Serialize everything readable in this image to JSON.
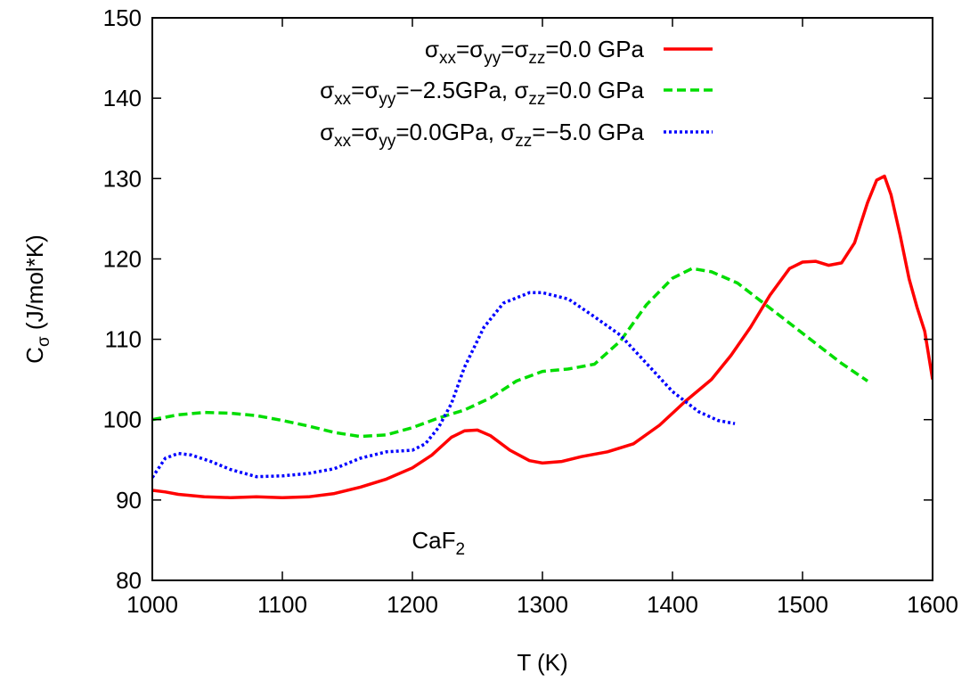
{
  "chart_data": {
    "type": "line",
    "xlabel": "T (K)",
    "ylabel": {
      "main": "C",
      "sub": "σ",
      "rest": " (J/mol*K)"
    },
    "xlim": [
      1000,
      1600
    ],
    "ylim": [
      80,
      150
    ],
    "xticks": [
      1000,
      1100,
      1200,
      1300,
      1400,
      1500,
      1600
    ],
    "yticks": [
      80,
      90,
      100,
      110,
      120,
      130,
      140,
      150
    ],
    "grid": false,
    "legend_position": "top-right",
    "annotation": {
      "main": "CaF",
      "sub": "2",
      "x": 1220,
      "y": 85
    },
    "series": [
      {
        "legend": [
          [
            "σ",
            ""
          ],
          [
            "xx",
            "sub"
          ],
          [
            "=σ",
            ""
          ],
          [
            "yy",
            "sub"
          ],
          [
            "=σ",
            ""
          ],
          [
            "zz",
            "sub"
          ],
          [
            "=0.0 GPa",
            ""
          ]
        ],
        "color": "#ff0000",
        "dash": "solid",
        "points": [
          [
            1000,
            91.2
          ],
          [
            1010,
            91.0
          ],
          [
            1020,
            90.7
          ],
          [
            1040,
            90.4
          ],
          [
            1060,
            90.3
          ],
          [
            1080,
            90.4
          ],
          [
            1100,
            90.3
          ],
          [
            1120,
            90.4
          ],
          [
            1140,
            90.8
          ],
          [
            1160,
            91.6
          ],
          [
            1180,
            92.6
          ],
          [
            1200,
            94.0
          ],
          [
            1215,
            95.6
          ],
          [
            1230,
            97.8
          ],
          [
            1240,
            98.6
          ],
          [
            1250,
            98.7
          ],
          [
            1260,
            98.0
          ],
          [
            1275,
            96.2
          ],
          [
            1290,
            94.9
          ],
          [
            1300,
            94.6
          ],
          [
            1315,
            94.8
          ],
          [
            1330,
            95.4
          ],
          [
            1350,
            96.0
          ],
          [
            1370,
            97.0
          ],
          [
            1390,
            99.3
          ],
          [
            1410,
            102.3
          ],
          [
            1430,
            105.0
          ],
          [
            1445,
            108.0
          ],
          [
            1460,
            111.5
          ],
          [
            1475,
            115.5
          ],
          [
            1490,
            118.8
          ],
          [
            1500,
            119.6
          ],
          [
            1510,
            119.7
          ],
          [
            1520,
            119.2
          ],
          [
            1530,
            119.5
          ],
          [
            1540,
            122.0
          ],
          [
            1550,
            127.0
          ],
          [
            1557,
            129.8
          ],
          [
            1563,
            130.3
          ],
          [
            1568,
            128.0
          ],
          [
            1575,
            123.0
          ],
          [
            1582,
            117.5
          ],
          [
            1588,
            114.0
          ],
          [
            1594,
            111.0
          ],
          [
            1600,
            105.0
          ]
        ]
      },
      {
        "legend": [
          [
            "σ",
            ""
          ],
          [
            "xx",
            "sub"
          ],
          [
            "=σ",
            ""
          ],
          [
            "yy",
            "sub"
          ],
          [
            "=−2.5GPa, σ",
            ""
          ],
          [
            "zz",
            "sub"
          ],
          [
            "=0.0 GPa",
            ""
          ]
        ],
        "color": "#00dd00",
        "dash": "10,5",
        "points": [
          [
            1000,
            100.0
          ],
          [
            1020,
            100.6
          ],
          [
            1040,
            100.9
          ],
          [
            1060,
            100.8
          ],
          [
            1080,
            100.5
          ],
          [
            1100,
            99.9
          ],
          [
            1120,
            99.2
          ],
          [
            1140,
            98.4
          ],
          [
            1160,
            97.9
          ],
          [
            1180,
            98.1
          ],
          [
            1200,
            99.0
          ],
          [
            1220,
            100.2
          ],
          [
            1240,
            101.2
          ],
          [
            1260,
            102.7
          ],
          [
            1280,
            104.8
          ],
          [
            1300,
            106.0
          ],
          [
            1320,
            106.3
          ],
          [
            1340,
            106.9
          ],
          [
            1360,
            109.8
          ],
          [
            1380,
            114.3
          ],
          [
            1400,
            117.6
          ],
          [
            1415,
            118.8
          ],
          [
            1430,
            118.4
          ],
          [
            1450,
            117.0
          ],
          [
            1470,
            114.5
          ],
          [
            1490,
            112.0
          ],
          [
            1510,
            109.5
          ],
          [
            1530,
            107.0
          ],
          [
            1550,
            104.8
          ]
        ]
      },
      {
        "legend": [
          [
            "σ",
            ""
          ],
          [
            "xx",
            "sub"
          ],
          [
            "=σ",
            ""
          ],
          [
            "yy",
            "sub"
          ],
          [
            "=0.0GPa, σ",
            ""
          ],
          [
            "zz",
            "sub"
          ],
          [
            "=−5.0 GPa",
            ""
          ]
        ],
        "color": "#0000ff",
        "dash": "3,3",
        "points": [
          [
            1000,
            92.8
          ],
          [
            1010,
            95.2
          ],
          [
            1020,
            95.8
          ],
          [
            1030,
            95.6
          ],
          [
            1045,
            94.8
          ],
          [
            1060,
            93.8
          ],
          [
            1080,
            92.9
          ],
          [
            1100,
            93.0
          ],
          [
            1120,
            93.3
          ],
          [
            1140,
            93.9
          ],
          [
            1160,
            95.2
          ],
          [
            1180,
            96.0
          ],
          [
            1200,
            96.2
          ],
          [
            1210,
            97.0
          ],
          [
            1220,
            99.0
          ],
          [
            1230,
            102.0
          ],
          [
            1240,
            106.5
          ],
          [
            1255,
            111.5
          ],
          [
            1270,
            114.5
          ],
          [
            1290,
            115.8
          ],
          [
            1300,
            115.8
          ],
          [
            1320,
            115.0
          ],
          [
            1340,
            112.8
          ],
          [
            1360,
            110.5
          ],
          [
            1380,
            107.0
          ],
          [
            1400,
            103.5
          ],
          [
            1420,
            101.0
          ],
          [
            1435,
            99.9
          ],
          [
            1448,
            99.5
          ]
        ]
      }
    ]
  }
}
